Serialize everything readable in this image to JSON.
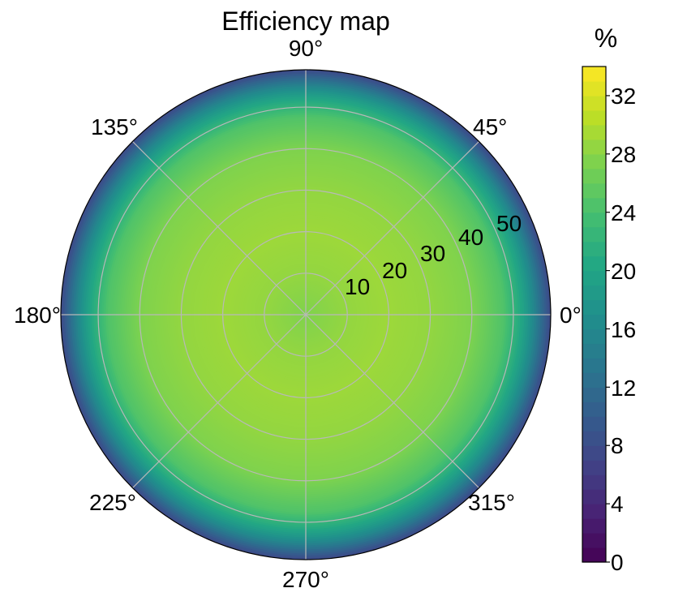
{
  "chart_data": {
    "type": "heatmap",
    "projection": "polar",
    "title": "Efficiency map",
    "colorbar_label": "%",
    "colormap": "viridis",
    "color_range": [
      0,
      34
    ],
    "colorbar_ticks": [
      "0",
      "4",
      "8",
      "12",
      "16",
      "20",
      "24",
      "28",
      "32"
    ],
    "colorbar_tick_values": [
      0,
      4,
      8,
      12,
      16,
      20,
      24,
      28,
      32
    ],
    "angle_ticks": [
      "0°",
      "45°",
      "90°",
      "135°",
      "180°",
      "225°",
      "270°",
      "315°"
    ],
    "angle_tick_values": [
      0,
      45,
      90,
      135,
      180,
      225,
      270,
      315
    ],
    "radial_ticks": [
      "10",
      "20",
      "30",
      "40",
      "50"
    ],
    "radial_tick_values": [
      10,
      20,
      30,
      40,
      50
    ],
    "r_max": 59,
    "grid": true,
    "radial_profile": {
      "r": [
        0,
        10,
        20,
        30,
        40,
        48,
        52,
        55,
        57,
        59
      ],
      "value": [
        27.5,
        28.5,
        29,
        28.5,
        27.5,
        24.5,
        20.5,
        16,
        12,
        8
      ]
    }
  }
}
